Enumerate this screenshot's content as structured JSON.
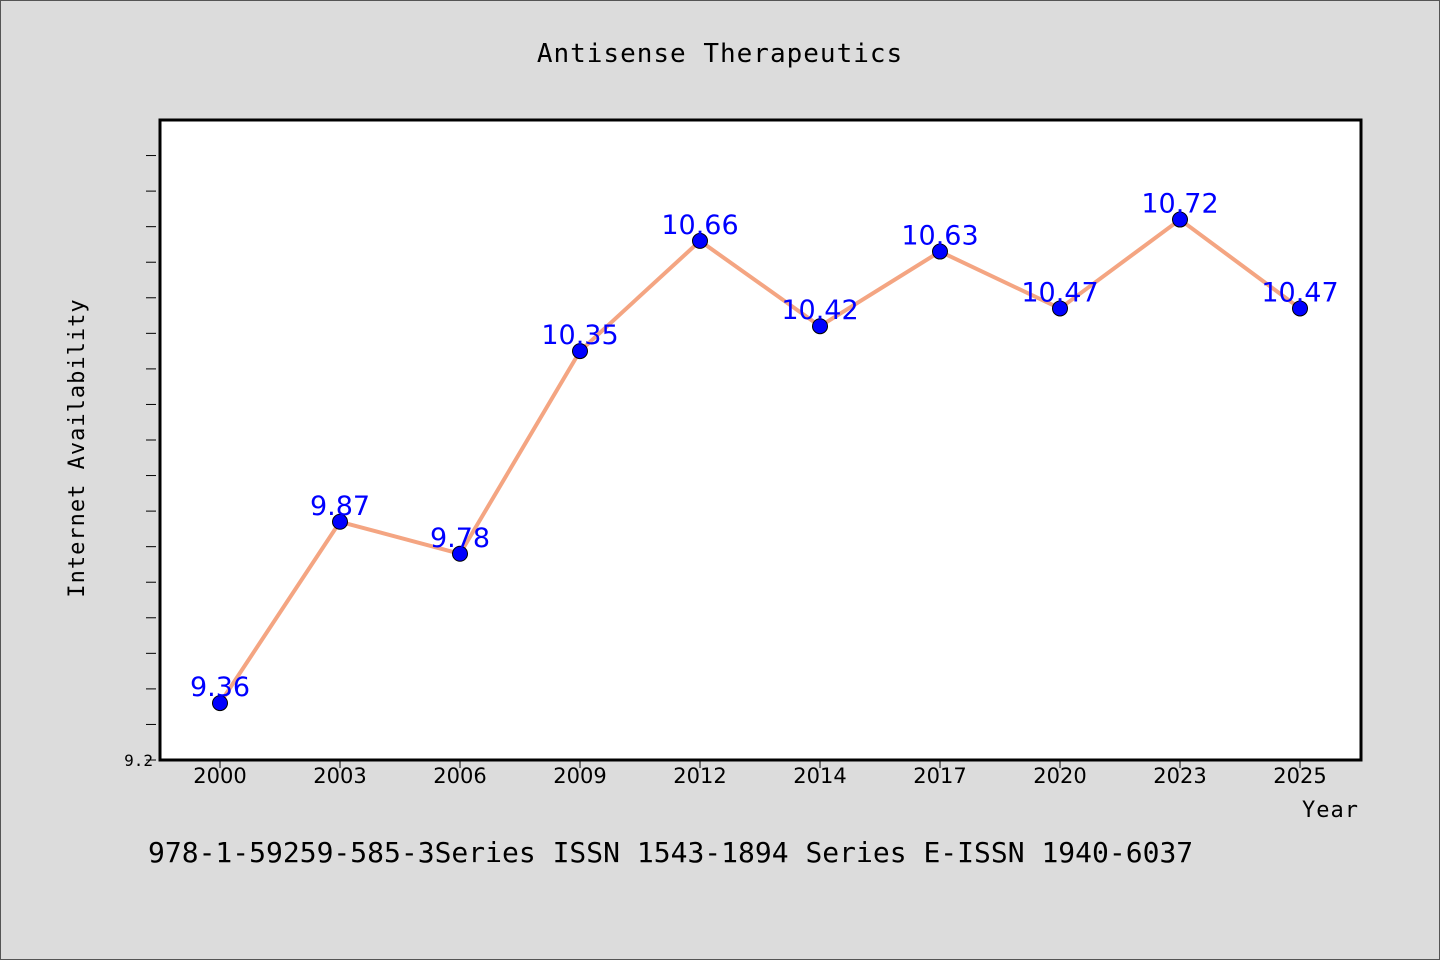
{
  "chart_data": {
    "type": "line",
    "title": "Antisense Therapeutics",
    "xlabel": "Year",
    "ylabel": "Internet Availability",
    "categories": [
      "2000",
      "2003",
      "2006",
      "2009",
      "2012",
      "2014",
      "2017",
      "2020",
      "2023",
      "2025"
    ],
    "series": [
      {
        "values": [
          9.36,
          9.87,
          9.78,
          10.35,
          10.66,
          10.42,
          10.63,
          10.47,
          10.72,
          10.47
        ],
        "data_labels": [
          "9.36",
          "9.87",
          "9.78",
          "10.35",
          "10.66",
          "10.42",
          "10.63",
          "10.47",
          "10.72",
          "10.47"
        ]
      }
    ],
    "ylim": [
      9.2,
      11.0
    ],
    "y_tick_labels": [
      "9.2"
    ],
    "grid": false,
    "legend": "none",
    "colors": {
      "line": "#f4a582",
      "marker": "#0000ff",
      "data_label": "#0000ff",
      "plot_bg": "#ffffff",
      "page_bg": "#dcdcdc"
    }
  },
  "footer": {
    "text": "978-1-59259-585-3Series ISSN 1543-1894 Series E-ISSN 1940-6037"
  }
}
